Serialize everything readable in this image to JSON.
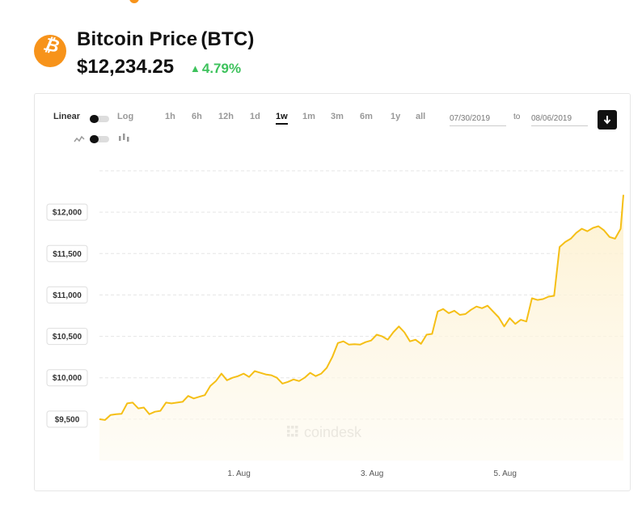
{
  "header": {
    "coin_icon": "bitcoin-icon",
    "coin_name": "Bitcoin Price",
    "coin_symbol": "(BTC)",
    "price": "$12,234.25",
    "change": "4.79%",
    "change_direction_icon": "up-triangle-icon",
    "colors": {
      "coin": "#f7931a",
      "positive": "#3dc25c"
    }
  },
  "controls": {
    "scale": {
      "linear_label": "Linear",
      "log_label": "Log",
      "selected": "Linear"
    },
    "chart_style": {
      "line_icon": "line-chart-icon",
      "candle_icon": "candlestick-icon",
      "selected": "line"
    },
    "ranges": [
      "1h",
      "6h",
      "12h",
      "1d",
      "1w",
      "1m",
      "3m",
      "6m",
      "1y",
      "all"
    ],
    "active_range": "1w",
    "date_from": "07/30/2019",
    "date_to_label": "to",
    "date_to": "08/06/2019",
    "download_icon": "download-arrow-icon"
  },
  "chart_data": {
    "type": "area",
    "title": "",
    "xlabel": "",
    "ylabel": "",
    "line_color": "#f5bf16",
    "y_ticks": [
      12000,
      11500,
      11000,
      10500,
      10000,
      9500
    ],
    "y_tick_labels": [
      "$12,000",
      "$11,500",
      "$11,000",
      "$10,500",
      "$10,000",
      "$9,500"
    ],
    "ylim": [
      9000,
      12500
    ],
    "grid": true,
    "x_tick_labels": [
      "1. Aug",
      "3. Aug",
      "5. Aug"
    ],
    "xlim": [
      "2019-07-30 00:00",
      "2019-08-06 21:00"
    ],
    "watermark": "coindesk",
    "series": [
      {
        "values": [
          [
            "2019-07-30 00:00",
            9500
          ],
          [
            "2019-07-30 02:00",
            9490
          ],
          [
            "2019-07-30 04:00",
            9550
          ],
          [
            "2019-07-30 06:00",
            9560
          ],
          [
            "2019-07-30 08:00",
            9565
          ],
          [
            "2019-07-30 10:00",
            9690
          ],
          [
            "2019-07-30 12:00",
            9700
          ],
          [
            "2019-07-30 14:00",
            9630
          ],
          [
            "2019-07-30 16:00",
            9640
          ],
          [
            "2019-07-30 18:00",
            9560
          ],
          [
            "2019-07-30 20:00",
            9590
          ],
          [
            "2019-07-30 22:00",
            9600
          ],
          [
            "2019-07-31 00:00",
            9700
          ],
          [
            "2019-07-31 02:00",
            9690
          ],
          [
            "2019-07-31 04:00",
            9700
          ],
          [
            "2019-07-31 06:00",
            9710
          ],
          [
            "2019-07-31 08:00",
            9780
          ],
          [
            "2019-07-31 10:00",
            9750
          ],
          [
            "2019-07-31 12:00",
            9770
          ],
          [
            "2019-07-31 14:00",
            9790
          ],
          [
            "2019-07-31 16:00",
            9900
          ],
          [
            "2019-07-31 18:00",
            9960
          ],
          [
            "2019-07-31 20:00",
            10050
          ],
          [
            "2019-07-31 22:00",
            9970
          ],
          [
            "2019-08-01 00:00",
            10000
          ],
          [
            "2019-08-01 02:00",
            10020
          ],
          [
            "2019-08-01 04:00",
            10050
          ],
          [
            "2019-08-01 06:00",
            10010
          ],
          [
            "2019-08-01 08:00",
            10080
          ],
          [
            "2019-08-01 10:00",
            10060
          ],
          [
            "2019-08-01 12:00",
            10040
          ],
          [
            "2019-08-01 14:00",
            10030
          ],
          [
            "2019-08-01 16:00",
            10000
          ],
          [
            "2019-08-01 18:00",
            9930
          ],
          [
            "2019-08-01 20:00",
            9950
          ],
          [
            "2019-08-01 22:00",
            9980
          ],
          [
            "2019-08-02 00:00",
            9960
          ],
          [
            "2019-08-02 02:00",
            10000
          ],
          [
            "2019-08-02 04:00",
            10060
          ],
          [
            "2019-08-02 06:00",
            10020
          ],
          [
            "2019-08-02 08:00",
            10050
          ],
          [
            "2019-08-02 10:00",
            10120
          ],
          [
            "2019-08-02 12:00",
            10250
          ],
          [
            "2019-08-02 14:00",
            10420
          ],
          [
            "2019-08-02 16:00",
            10440
          ],
          [
            "2019-08-02 18:00",
            10400
          ],
          [
            "2019-08-02 20:00",
            10405
          ],
          [
            "2019-08-02 22:00",
            10400
          ],
          [
            "2019-08-03 00:00",
            10430
          ],
          [
            "2019-08-03 02:00",
            10450
          ],
          [
            "2019-08-03 04:00",
            10520
          ],
          [
            "2019-08-03 06:00",
            10500
          ],
          [
            "2019-08-03 08:00",
            10460
          ],
          [
            "2019-08-03 10:00",
            10550
          ],
          [
            "2019-08-03 12:00",
            10620
          ],
          [
            "2019-08-03 14:00",
            10550
          ],
          [
            "2019-08-03 16:00",
            10440
          ],
          [
            "2019-08-03 18:00",
            10460
          ],
          [
            "2019-08-03 20:00",
            10410
          ],
          [
            "2019-08-03 22:00",
            10520
          ],
          [
            "2019-08-04 00:00",
            10530
          ],
          [
            "2019-08-04 02:00",
            10800
          ],
          [
            "2019-08-04 04:00",
            10830
          ],
          [
            "2019-08-04 06:00",
            10780
          ],
          [
            "2019-08-04 08:00",
            10810
          ],
          [
            "2019-08-04 10:00",
            10760
          ],
          [
            "2019-08-04 12:00",
            10770
          ],
          [
            "2019-08-04 14:00",
            10820
          ],
          [
            "2019-08-04 16:00",
            10860
          ],
          [
            "2019-08-04 18:00",
            10840
          ],
          [
            "2019-08-04 20:00",
            10870
          ],
          [
            "2019-08-04 22:00",
            10800
          ],
          [
            "2019-08-05 00:00",
            10730
          ],
          [
            "2019-08-05 02:00",
            10620
          ],
          [
            "2019-08-05 04:00",
            10720
          ],
          [
            "2019-08-05 06:00",
            10650
          ],
          [
            "2019-08-05 08:00",
            10700
          ],
          [
            "2019-08-05 10:00",
            10680
          ],
          [
            "2019-08-05 12:00",
            10960
          ],
          [
            "2019-08-05 14:00",
            10940
          ],
          [
            "2019-08-05 16:00",
            10950
          ],
          [
            "2019-08-05 18:00",
            10980
          ],
          [
            "2019-08-05 20:00",
            10990
          ],
          [
            "2019-08-05 22:00",
            11580
          ],
          [
            "2019-08-06 00:00",
            11640
          ],
          [
            "2019-08-06 02:00",
            11680
          ],
          [
            "2019-08-06 04:00",
            11750
          ],
          [
            "2019-08-06 06:00",
            11800
          ],
          [
            "2019-08-06 08:00",
            11770
          ],
          [
            "2019-08-06 10:00",
            11810
          ],
          [
            "2019-08-06 12:00",
            11830
          ],
          [
            "2019-08-06 14:00",
            11780
          ],
          [
            "2019-08-06 16:00",
            11700
          ],
          [
            "2019-08-06 18:00",
            11680
          ],
          [
            "2019-08-06 20:00",
            11800
          ],
          [
            "2019-08-06 21:00",
            12210
          ]
        ]
      }
    ]
  }
}
